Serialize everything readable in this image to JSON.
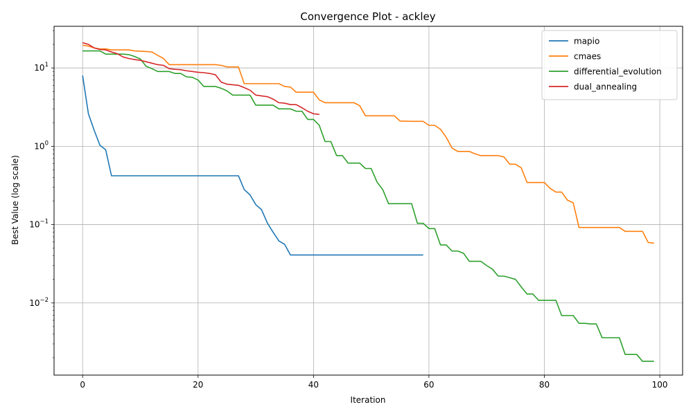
{
  "chart_data": {
    "type": "line",
    "title": "Convergence Plot - ackley",
    "xlabel": "Iteration",
    "ylabel": "Best Value (log scale)",
    "xlim": [
      -4.95,
      103.95
    ],
    "ylim": [
      0.0012,
      34
    ],
    "yscale": "log",
    "grid": true,
    "legend_position": "top-right",
    "x_ticks": [
      0,
      20,
      40,
      60,
      80,
      100
    ],
    "y_ticks": [
      {
        "value": 0.01,
        "base": "10",
        "exp": "−2"
      },
      {
        "value": 0.1,
        "base": "10",
        "exp": "−1"
      },
      {
        "value": 1,
        "base": "10",
        "exp": "0"
      },
      {
        "value": 10,
        "base": "10",
        "exp": "1"
      }
    ],
    "series": [
      {
        "name": "mapio",
        "color": "#1f77b4",
        "points": [
          [
            0,
            8
          ],
          [
            1,
            2.6
          ],
          [
            2,
            1.6
          ],
          [
            3,
            1.03
          ],
          [
            4,
            0.9
          ],
          [
            5,
            0.42
          ],
          [
            27,
            0.42
          ],
          [
            28,
            0.28
          ],
          [
            29,
            0.24
          ],
          [
            30,
            0.18
          ],
          [
            31,
            0.155
          ],
          [
            32,
            0.105
          ],
          [
            33,
            0.08
          ],
          [
            34,
            0.062
          ],
          [
            35,
            0.056
          ],
          [
            36,
            0.041
          ],
          [
            59,
            0.041
          ]
        ]
      },
      {
        "name": "cmaes",
        "color": "#ff7f0e",
        "points": [
          [
            0,
            19.5
          ],
          [
            1,
            19
          ],
          [
            2,
            18
          ],
          [
            3,
            17.5
          ],
          [
            4,
            17.5
          ],
          [
            5,
            17
          ],
          [
            8,
            17
          ],
          [
            9,
            16.5
          ],
          [
            11,
            16.2
          ],
          [
            12,
            16
          ],
          [
            13,
            14.5
          ],
          [
            14,
            13.2
          ],
          [
            15,
            11
          ],
          [
            23,
            11
          ],
          [
            24,
            10.8
          ],
          [
            25,
            10.3
          ],
          [
            27,
            10.3
          ],
          [
            28,
            6.3
          ],
          [
            34,
            6.3
          ],
          [
            35,
            5.8
          ],
          [
            36,
            5.7
          ],
          [
            37,
            4.9
          ],
          [
            40,
            4.9
          ],
          [
            41,
            3.9
          ],
          [
            42,
            3.6
          ],
          [
            47,
            3.6
          ],
          [
            48,
            3.3
          ],
          [
            49,
            2.45
          ],
          [
            54,
            2.45
          ],
          [
            55,
            2.1
          ],
          [
            57,
            2.08
          ],
          [
            59,
            2.08
          ],
          [
            60,
            1.85
          ],
          [
            61,
            1.85
          ],
          [
            62,
            1.65
          ],
          [
            63,
            1.3
          ],
          [
            64,
            0.95
          ],
          [
            65,
            0.86
          ],
          [
            67,
            0.86
          ],
          [
            68,
            0.8
          ],
          [
            69,
            0.76
          ],
          [
            72,
            0.76
          ],
          [
            73,
            0.73
          ],
          [
            74,
            0.59
          ],
          [
            75,
            0.59
          ],
          [
            76,
            0.53
          ],
          [
            77,
            0.345
          ],
          [
            80,
            0.345
          ],
          [
            81,
            0.29
          ],
          [
            82,
            0.26
          ],
          [
            83,
            0.26
          ],
          [
            84,
            0.205
          ],
          [
            85,
            0.19
          ],
          [
            86,
            0.092
          ],
          [
            93,
            0.092
          ],
          [
            94,
            0.082
          ],
          [
            97,
            0.082
          ],
          [
            98,
            0.059
          ],
          [
            99,
            0.058
          ]
        ]
      },
      {
        "name": "differential_evolution",
        "color": "#2ca02c",
        "points": [
          [
            0,
            16.5
          ],
          [
            3,
            16.5
          ],
          [
            4,
            15
          ],
          [
            7,
            15
          ],
          [
            8,
            14.8
          ],
          [
            9,
            14
          ],
          [
            10,
            13
          ],
          [
            11,
            10.5
          ],
          [
            12,
            9.8
          ],
          [
            13,
            9
          ],
          [
            15,
            9
          ],
          [
            16,
            8.5
          ],
          [
            17,
            8.5
          ],
          [
            18,
            7.7
          ],
          [
            19,
            7.6
          ],
          [
            20,
            7
          ],
          [
            21,
            5.8
          ],
          [
            23,
            5.8
          ],
          [
            24,
            5.5
          ],
          [
            25,
            5.1
          ],
          [
            26,
            4.5
          ],
          [
            29,
            4.5
          ],
          [
            30,
            3.35
          ],
          [
            33,
            3.35
          ],
          [
            34,
            3
          ],
          [
            36,
            3
          ],
          [
            37,
            2.8
          ],
          [
            38,
            2.8
          ],
          [
            39,
            2.2
          ],
          [
            40,
            2.2
          ],
          [
            41,
            1.85
          ],
          [
            42,
            1.15
          ],
          [
            43,
            1.15
          ],
          [
            44,
            0.76
          ],
          [
            45,
            0.76
          ],
          [
            46,
            0.61
          ],
          [
            48,
            0.61
          ],
          [
            49,
            0.52
          ],
          [
            50,
            0.52
          ],
          [
            51,
            0.35
          ],
          [
            52,
            0.28
          ],
          [
            53,
            0.185
          ],
          [
            57,
            0.185
          ],
          [
            58,
            0.104
          ],
          [
            59,
            0.104
          ],
          [
            60,
            0.089
          ],
          [
            61,
            0.089
          ],
          [
            62,
            0.055
          ],
          [
            63,
            0.055
          ],
          [
            64,
            0.046
          ],
          [
            65,
            0.046
          ],
          [
            66,
            0.043
          ],
          [
            67,
            0.034
          ],
          [
            69,
            0.034
          ],
          [
            70,
            0.03
          ],
          [
            71,
            0.027
          ],
          [
            72,
            0.022
          ],
          [
            73,
            0.022
          ],
          [
            74,
            0.021
          ],
          [
            75,
            0.02
          ],
          [
            76,
            0.016
          ],
          [
            77,
            0.013
          ],
          [
            78,
            0.013
          ],
          [
            79,
            0.0108
          ],
          [
            82,
            0.0108
          ],
          [
            83,
            0.0069
          ],
          [
            85,
            0.0069
          ],
          [
            86,
            0.0055
          ],
          [
            87,
            0.0055
          ],
          [
            88,
            0.0054
          ],
          [
            89,
            0.0054
          ],
          [
            90,
            0.0036
          ],
          [
            93,
            0.0036
          ],
          [
            94,
            0.0022
          ],
          [
            95,
            0.0022
          ],
          [
            96,
            0.0022
          ],
          [
            97,
            0.0018
          ],
          [
            99,
            0.0018
          ]
        ]
      },
      {
        "name": "dual_annealing",
        "color": "#d62728",
        "points": [
          [
            0,
            21
          ],
          [
            1,
            20
          ],
          [
            2,
            18
          ],
          [
            3,
            17.2
          ],
          [
            4,
            17
          ],
          [
            5,
            16
          ],
          [
            6,
            15.2
          ],
          [
            7,
            13.8
          ],
          [
            8,
            13.2
          ],
          [
            9,
            12.8
          ],
          [
            10,
            12.5
          ],
          [
            11,
            12
          ],
          [
            12,
            11.5
          ],
          [
            13,
            11
          ],
          [
            14,
            10.8
          ],
          [
            15,
            9.8
          ],
          [
            16,
            9.6
          ],
          [
            17,
            9.5
          ],
          [
            18,
            9.2
          ],
          [
            19,
            9
          ],
          [
            20,
            8.8
          ],
          [
            21,
            8.7
          ],
          [
            22,
            8.5
          ],
          [
            23,
            8.2
          ],
          [
            24,
            6.6
          ],
          [
            25,
            6.2
          ],
          [
            27,
            6
          ],
          [
            28,
            5.6
          ],
          [
            29,
            5.2
          ],
          [
            30,
            4.5
          ],
          [
            31,
            4.4
          ],
          [
            32,
            4.3
          ],
          [
            33,
            4
          ],
          [
            34,
            3.6
          ],
          [
            35,
            3.55
          ],
          [
            36,
            3.4
          ],
          [
            37,
            3.4
          ],
          [
            38,
            3.1
          ],
          [
            39,
            2.8
          ],
          [
            40,
            2.6
          ],
          [
            41,
            2.55
          ]
        ]
      }
    ]
  }
}
